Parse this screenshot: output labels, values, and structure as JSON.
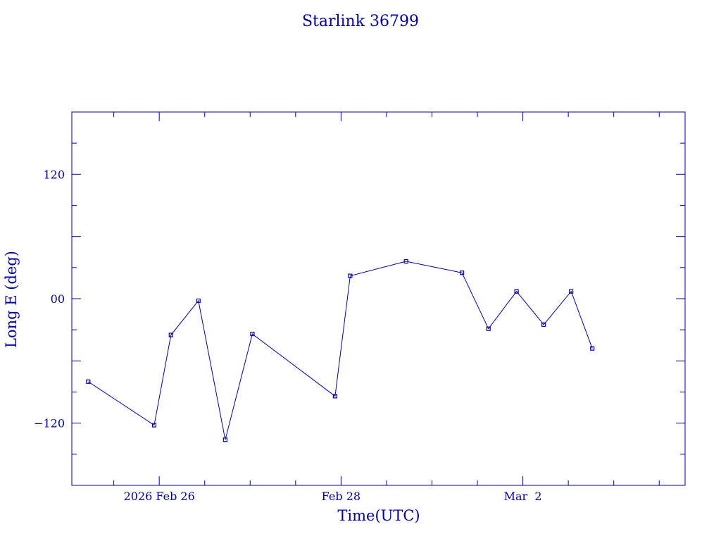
{
  "chart_data": {
    "type": "line",
    "title": "Starlink 36799",
    "xlabel": "Time(UTC)",
    "ylabel": "Long E (deg)",
    "x_tick_labels": [
      {
        "date": "2026-02-26",
        "label": "2026 Feb 26"
      },
      {
        "date": "2026-02-28",
        "label": "Feb 28"
      },
      {
        "date": "2026-03-02",
        "label": "Mar  2"
      }
    ],
    "xlim": [
      "2026-02-25T00:55:00",
      "2026-03-03T18:50:00"
    ],
    "ylim": [
      -180,
      180
    ],
    "y_tick_labels": [
      {
        "value": 120,
        "label": "120"
      },
      {
        "value": 0,
        "label": "00"
      },
      {
        "value": -120,
        "label": "−120"
      }
    ],
    "grid": false,
    "series": [
      {
        "x": [
          "2026-02-25T05:15:00",
          "2026-02-25T22:40:00",
          "2026-02-26T03:05:00",
          "2026-02-26T10:20:00",
          "2026-02-26T17:25:00",
          "2026-02-27T00:35:00",
          "2026-02-27T22:25:00",
          "2026-02-28T02:25:00",
          "2026-02-28T17:10:00",
          "2026-03-01T07:55:00",
          "2026-03-01T14:55:00",
          "2026-03-01T22:20:00",
          "2026-03-02T05:30:00",
          "2026-03-02T12:45:00",
          "2026-03-02T18:20:00"
        ],
        "y": [
          -80,
          -122,
          -35,
          -2,
          -136,
          -34,
          -94,
          22,
          36,
          25,
          -29,
          7,
          -25,
          7,
          -48
        ]
      }
    ]
  }
}
